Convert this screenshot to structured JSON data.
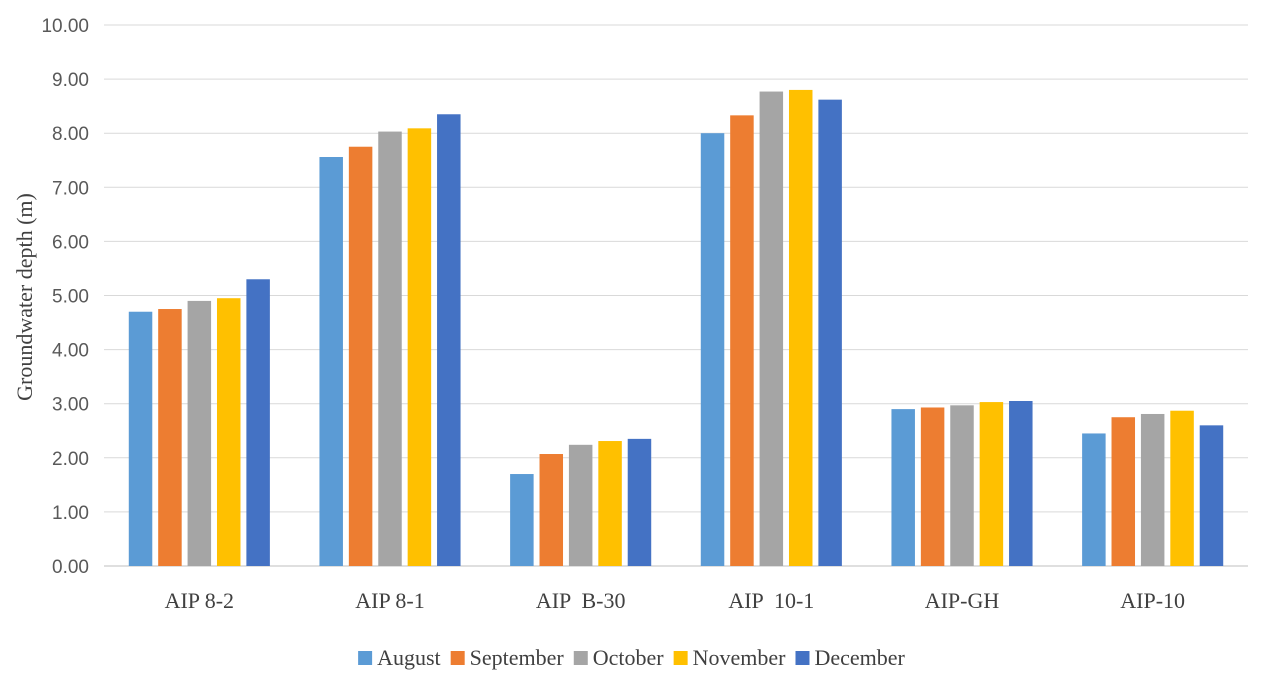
{
  "chart_data": {
    "type": "bar",
    "title": "",
    "xlabel": "",
    "ylabel": "Groundwater depth  (m)",
    "ylim": [
      0,
      10
    ],
    "ytick_step": 1,
    "ytick_labels": [
      "0.00",
      "1.00",
      "2.00",
      "3.00",
      "4.00",
      "5.00",
      "6.00",
      "7.00",
      "8.00",
      "9.00",
      "10.00"
    ],
    "grid": true,
    "legend_position": "bottom",
    "categories": [
      "AIP 8-2",
      "AIP 8-1",
      "AIP  B-30",
      "AIP  10-1",
      "AIP-GH",
      "AIP-10"
    ],
    "series": [
      {
        "name": "August",
        "color": "#5B9BD5",
        "values": [
          4.7,
          7.56,
          1.7,
          8.0,
          2.9,
          2.45
        ]
      },
      {
        "name": "September",
        "color": "#ED7D31",
        "values": [
          4.75,
          7.75,
          2.07,
          8.33,
          2.93,
          2.75
        ]
      },
      {
        "name": "October",
        "color": "#A5A5A5",
        "values": [
          4.9,
          8.03,
          2.24,
          8.77,
          2.97,
          2.81
        ]
      },
      {
        "name": "November",
        "color": "#FFC000",
        "values": [
          4.95,
          8.09,
          2.31,
          8.8,
          3.03,
          2.87
        ]
      },
      {
        "name": "December",
        "color": "#4472C4",
        "values": [
          5.3,
          8.35,
          2.35,
          8.62,
          3.05,
          2.6
        ]
      }
    ]
  }
}
